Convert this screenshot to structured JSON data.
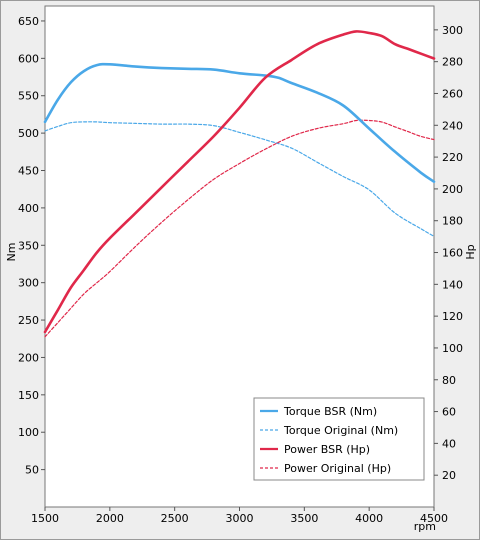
{
  "chart_data": {
    "type": "line",
    "xlabel": "rpm",
    "y_left_label": "Nm",
    "y_right_label": "Hp",
    "xlim": [
      1500,
      4500
    ],
    "y_left_lim": [
      0,
      670
    ],
    "y_right_lim": [
      0,
      315
    ],
    "x_ticks": [
      1500,
      2000,
      2500,
      3000,
      3500,
      4000,
      4500
    ],
    "y_left_ticks": [
      50,
      100,
      150,
      200,
      250,
      300,
      350,
      400,
      450,
      500,
      550,
      600,
      650
    ],
    "y_right_ticks": [
      20,
      40,
      60,
      80,
      100,
      120,
      140,
      160,
      180,
      200,
      220,
      240,
      260,
      280,
      300
    ],
    "grid": false,
    "legend_position": "bottom-right",
    "colors": {
      "torque": "#4aa8e8",
      "power": "#e0284a"
    },
    "series": [
      {
        "name": "Torque BSR (Nm)",
        "axis": "left",
        "color": "#4aa8e8",
        "style": "solid",
        "x": [
          1500,
          1600,
          1700,
          1800,
          1900,
          2000,
          2200,
          2400,
          2600,
          2800,
          3000,
          3200,
          3300,
          3400,
          3600,
          3800,
          4000,
          4200,
          4400,
          4500
        ],
        "y": [
          515,
          545,
          568,
          583,
          591,
          592,
          589,
          587,
          586,
          585,
          580,
          577,
          574,
          567,
          554,
          537,
          506,
          475,
          447,
          435
        ]
      },
      {
        "name": "Torque Original (Nm)",
        "axis": "left",
        "color": "#4aa8e8",
        "style": "dashed",
        "x": [
          1500,
          1600,
          1700,
          1800,
          1900,
          2000,
          2200,
          2400,
          2600,
          2800,
          3000,
          3200,
          3400,
          3600,
          3800,
          4000,
          4200,
          4400,
          4500
        ],
        "y": [
          503,
          509,
          514,
          515,
          515,
          514,
          513,
          512,
          512,
          510,
          501,
          491,
          480,
          461,
          442,
          424,
          393,
          372,
          362
        ]
      },
      {
        "name": "Power BSR (Hp)",
        "axis": "right",
        "color": "#e0284a",
        "style": "solid",
        "x": [
          1500,
          1600,
          1700,
          1800,
          1900,
          2000,
          2200,
          2400,
          2600,
          2800,
          3000,
          3200,
          3400,
          3600,
          3800,
          3900,
          4000,
          4100,
          4200,
          4300,
          4400,
          4500
        ],
        "y": [
          110,
          124,
          138,
          149,
          160,
          169,
          185,
          201,
          217,
          233,
          251,
          270,
          281,
          291,
          297,
          299,
          298,
          296,
          291,
          288,
          285,
          282
        ]
      },
      {
        "name": "Power Original (Hp)",
        "axis": "right",
        "color": "#e0284a",
        "style": "dashed",
        "x": [
          1500,
          1600,
          1700,
          1800,
          1900,
          2000,
          2200,
          2400,
          2600,
          2800,
          3000,
          3200,
          3400,
          3600,
          3800,
          3900,
          4000,
          4100,
          4200,
          4300,
          4400,
          4500
        ],
        "y": [
          107,
          116,
          125,
          134,
          141,
          148,
          164,
          179,
          193,
          206,
          216,
          225,
          233,
          238,
          241,
          243,
          243,
          242,
          239,
          236,
          233,
          231
        ]
      }
    ]
  }
}
